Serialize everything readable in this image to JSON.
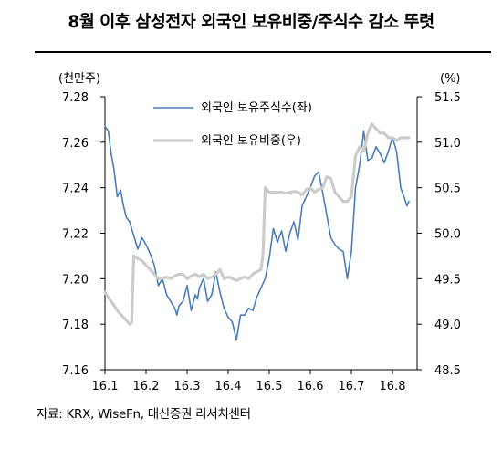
{
  "title": "8월 이후 삼성전자 외국인 보유비중/주식수 감소 뚜렷",
  "source": "자료: KRX, WiseFn, 대신증권 리서치센터",
  "chart_data": {
    "type": "line",
    "left_unit": "(천만주)",
    "right_unit": "(%)",
    "categories": [
      "16.1",
      "16.2",
      "16.3",
      "16.4",
      "16.5",
      "16.6",
      "16.7",
      "16.8"
    ],
    "left_ticks": [
      "7.28",
      "7.26",
      "7.24",
      "7.22",
      "7.20",
      "7.18",
      "7.16"
    ],
    "right_ticks": [
      "51.5",
      "51.0",
      "50.5",
      "50.0",
      "49.5",
      "49.0",
      "48.5"
    ],
    "ylim_left": [
      7.16,
      7.28
    ],
    "ylim_right": [
      48.5,
      51.5
    ],
    "xlim": [
      0,
      7.6
    ],
    "series": [
      {
        "name": "외국인 보유주식수(좌)",
        "axis": "left",
        "color": "#4a7ebb",
        "x": [
          0.0,
          0.08,
          0.15,
          0.22,
          0.3,
          0.38,
          0.45,
          0.52,
          0.6,
          0.7,
          0.8,
          0.9,
          1.0,
          1.1,
          1.2,
          1.3,
          1.4,
          1.5,
          1.6,
          1.7,
          1.75,
          1.8,
          1.9,
          2.0,
          2.1,
          2.2,
          2.25,
          2.3,
          2.4,
          2.5,
          2.6,
          2.7,
          2.8,
          2.9,
          3.0,
          3.1,
          3.2,
          3.3,
          3.4,
          3.5,
          3.6,
          3.7,
          3.8,
          3.9,
          4.0,
          4.1,
          4.2,
          4.3,
          4.4,
          4.5,
          4.6,
          4.7,
          4.8,
          4.9,
          5.0,
          5.1,
          5.2,
          5.3,
          5.4,
          5.5,
          5.6,
          5.7,
          5.8,
          5.9,
          6.0,
          6.1,
          6.2,
          6.3,
          6.4,
          6.5,
          6.6,
          6.7,
          6.8,
          6.9,
          7.0,
          7.1,
          7.2,
          7.3,
          7.35,
          7.4
        ],
        "values": [
          7.267,
          7.265,
          7.255,
          7.248,
          7.236,
          7.239,
          7.232,
          7.227,
          7.225,
          7.219,
          7.213,
          7.218,
          7.215,
          7.211,
          7.206,
          7.197,
          7.2,
          7.193,
          7.19,
          7.187,
          7.184,
          7.188,
          7.19,
          7.197,
          7.186,
          7.193,
          7.191,
          7.196,
          7.2,
          7.19,
          7.193,
          7.203,
          7.194,
          7.187,
          7.183,
          7.181,
          7.173,
          7.184,
          7.184,
          7.187,
          7.186,
          7.192,
          7.196,
          7.2,
          7.209,
          7.222,
          7.216,
          7.221,
          7.212,
          7.22,
          7.225,
          7.217,
          7.232,
          7.236,
          7.24,
          7.245,
          7.247,
          7.238,
          7.228,
          7.218,
          7.215,
          7.213,
          7.212,
          7.2,
          7.212,
          7.24,
          7.25,
          7.265,
          7.252,
          7.253,
          7.258,
          7.255,
          7.251,
          7.256,
          7.262,
          7.256,
          7.24,
          7.235,
          7.232,
          7.234
        ]
      },
      {
        "name": "외국인 보유비중(우)",
        "axis": "right",
        "color": "#cccccc",
        "x": [
          0.0,
          0.1,
          0.2,
          0.3,
          0.4,
          0.5,
          0.6,
          0.65,
          0.7,
          0.8,
          0.9,
          1.0,
          1.1,
          1.2,
          1.3,
          1.4,
          1.5,
          1.6,
          1.7,
          1.8,
          1.9,
          2.0,
          2.1,
          2.2,
          2.3,
          2.4,
          2.5,
          2.6,
          2.7,
          2.8,
          2.9,
          3.0,
          3.1,
          3.2,
          3.3,
          3.4,
          3.5,
          3.6,
          3.7,
          3.8,
          3.85,
          3.9,
          4.0,
          4.1,
          4.2,
          4.3,
          4.4,
          4.5,
          4.6,
          4.7,
          4.8,
          4.9,
          5.0,
          5.1,
          5.2,
          5.3,
          5.4,
          5.5,
          5.6,
          5.7,
          5.8,
          5.9,
          6.0,
          6.1,
          6.2,
          6.3,
          6.4,
          6.5,
          6.6,
          6.7,
          6.8,
          6.9,
          7.0,
          7.1,
          7.2,
          7.3,
          7.35,
          7.4
        ],
        "values": [
          49.35,
          49.28,
          49.22,
          49.15,
          49.1,
          49.05,
          49.0,
          49.02,
          49.75,
          49.72,
          49.7,
          49.65,
          49.6,
          49.55,
          49.5,
          49.5,
          49.52,
          49.5,
          49.53,
          49.55,
          49.55,
          49.5,
          49.53,
          49.55,
          49.52,
          49.55,
          49.5,
          49.52,
          49.55,
          49.6,
          49.5,
          49.52,
          49.5,
          49.48,
          49.5,
          49.52,
          49.5,
          49.55,
          49.58,
          49.6,
          49.8,
          50.5,
          50.45,
          50.45,
          50.45,
          50.45,
          50.44,
          50.45,
          50.46,
          50.45,
          50.42,
          50.48,
          50.5,
          50.45,
          50.48,
          50.5,
          50.62,
          50.6,
          50.45,
          50.4,
          50.35,
          50.35,
          50.4,
          50.85,
          50.95,
          50.9,
          51.1,
          51.2,
          51.15,
          51.1,
          51.1,
          51.05,
          51.05,
          51.02,
          51.05,
          51.05,
          51.05,
          51.05
        ]
      }
    ],
    "legend": "top-center",
    "grid": false
  }
}
